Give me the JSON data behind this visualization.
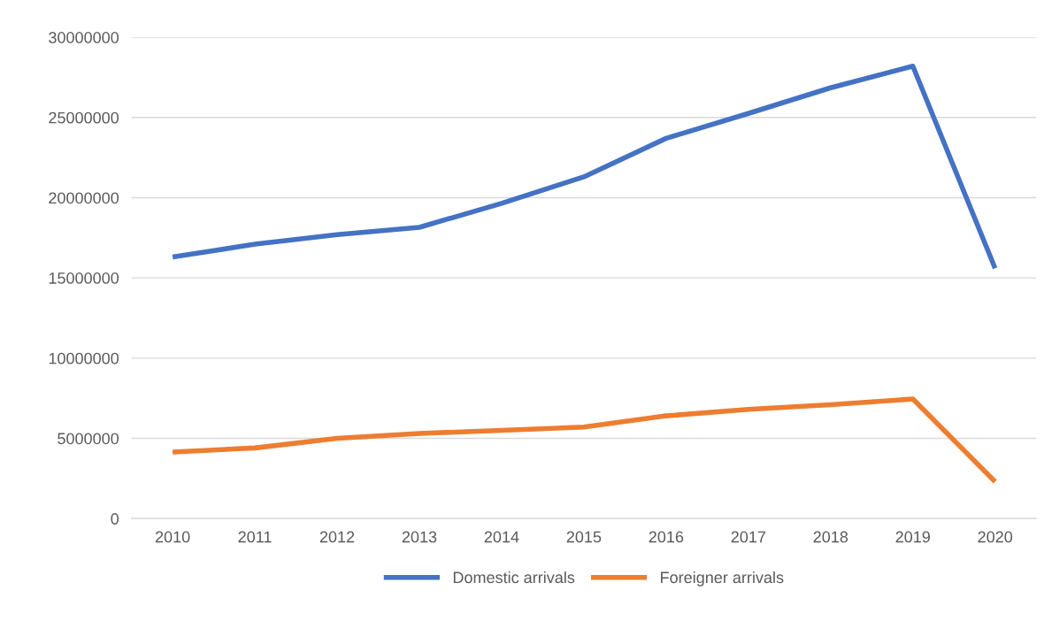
{
  "chart_data": {
    "type": "line",
    "categories": [
      "2010",
      "2011",
      "2012",
      "2013",
      "2014",
      "2015",
      "2016",
      "2017",
      "2018",
      "2019",
      "2020"
    ],
    "series": [
      {
        "name": "Domestic arrivals",
        "color": "#4472c4",
        "values": [
          16300000,
          17100000,
          17700000,
          18150000,
          19650000,
          21300000,
          23700000,
          25250000,
          26850000,
          28200000,
          15600000
        ]
      },
      {
        "name": "Foreigner arrivals",
        "color": "#ed7d31",
        "values": [
          4150000,
          4400000,
          5000000,
          5300000,
          5500000,
          5700000,
          6400000,
          6800000,
          7100000,
          7450000,
          2300000
        ]
      }
    ],
    "ylim": [
      0,
      30000000
    ],
    "yticks": [
      {
        "value": 0,
        "label": "0"
      },
      {
        "value": 5000000,
        "label": "5000000"
      },
      {
        "value": 10000000,
        "label": "10000000"
      },
      {
        "value": 15000000,
        "label": "15000000"
      },
      {
        "value": 20000000,
        "label": "20000000"
      },
      {
        "value": 25000000,
        "label": "25000000"
      },
      {
        "value": 30000000,
        "label": "30000000"
      }
    ],
    "grid": "y",
    "legend": "bottom",
    "marker": "none",
    "line_style": "solid"
  }
}
